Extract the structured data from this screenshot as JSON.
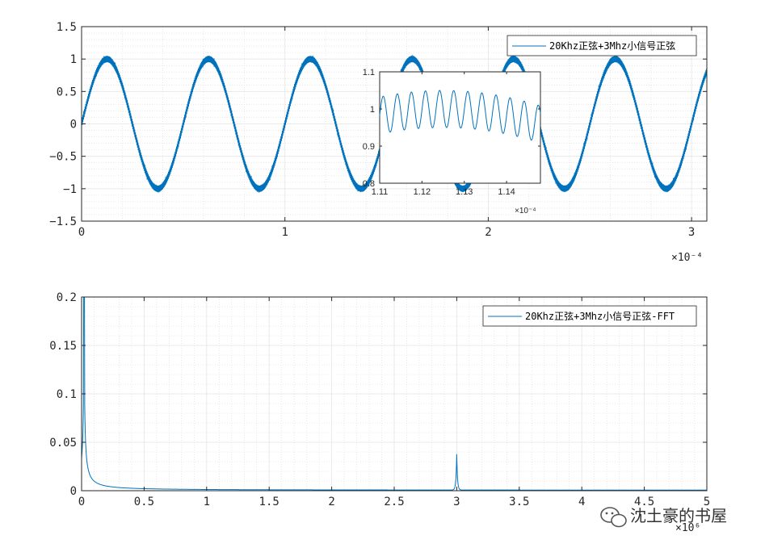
{
  "chart_data": [
    {
      "id": "time",
      "type": "line",
      "color": "#0072BD",
      "legend": "20Khz正弦+3Mhz小信号正弦",
      "legend_position": "top-right",
      "grid": true,
      "minor_grid": true,
      "xlim": [
        0,
        3.075
      ],
      "ylim": [
        -1.5,
        1.5
      ],
      "x_multiplier": "×10⁻⁴",
      "x_ticks": [
        "0",
        "1",
        "2",
        "3"
      ],
      "y_ticks": [
        "-1.5",
        "-1",
        "-0.5",
        "0",
        "0.5",
        "1",
        "1.5"
      ],
      "main_frequency_per_x_unit": 2,
      "main_amplitude": 1,
      "small_frequency_per_x_unit": 300,
      "small_amplitude": 0.05
    },
    {
      "id": "inset",
      "type": "line",
      "color": "#0072BD",
      "grid": false,
      "xlim": [
        1.11,
        1.148
      ],
      "ylim": [
        0.8,
        1.1
      ],
      "x_multiplier": "×10⁻⁴",
      "x_ticks": [
        "1.11",
        "1.12",
        "1.13",
        "1.14"
      ],
      "y_ticks": [
        "0.8",
        "0.9",
        "1",
        "1.1"
      ]
    },
    {
      "id": "fft",
      "type": "line",
      "color": "#0072BD",
      "legend": "20Khz正弦+3Mhz小信号正弦-FFT",
      "legend_position": "top-right",
      "grid": true,
      "minor_grid": true,
      "xlim": [
        0,
        5
      ],
      "ylim": [
        0,
        0.2
      ],
      "x_multiplier": "×10⁶",
      "x_ticks": [
        "0",
        "0.5",
        "1",
        "1.5",
        "2",
        "2.5",
        "3",
        "3.5",
        "4",
        "4.5",
        "5"
      ],
      "y_ticks": [
        "0",
        "0.05",
        "0.1",
        "0.15",
        "0.2"
      ],
      "peaks": [
        {
          "x": 0.02,
          "y": 0.2
        },
        {
          "x": 3.0,
          "y": 0.037
        }
      ]
    }
  ],
  "watermark": {
    "text": "沈土豪的书屋",
    "icon": "wechat-icon"
  }
}
